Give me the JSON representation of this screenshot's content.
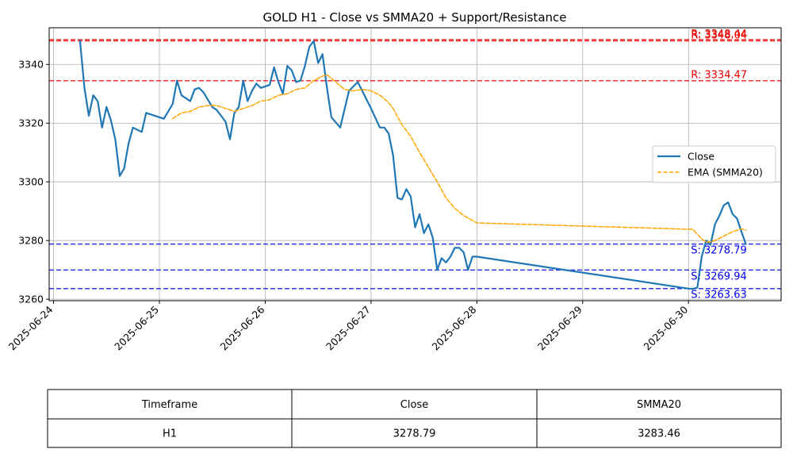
{
  "chart_data": {
    "type": "line",
    "title": "GOLD H1 - Close vs SMMA20 + Support/Resistance",
    "xlabel": "",
    "ylabel": "",
    "x_tick_labels": [
      "2025-06-24",
      "2025-06-25",
      "2025-06-26",
      "2025-06-27",
      "2025-06-28",
      "2025-06-29",
      "2025-06-30"
    ],
    "xlim": [
      "2025-06-23T23:00",
      "2025-06-30T21:00"
    ],
    "ylim": [
      3259.5,
      3352.5
    ],
    "y_ticks": [
      3260,
      3280,
      3300,
      3320,
      3340
    ],
    "grid": true,
    "legend_position": "center-right",
    "series": [
      {
        "name": "Close",
        "style": "solid",
        "color": "#1f77b4",
        "points": [
          [
            "2025-06-24T06:00",
            3348.0
          ],
          [
            "2025-06-24T07:00",
            3332.0
          ],
          [
            "2025-06-24T08:00",
            3322.5
          ],
          [
            "2025-06-24T09:00",
            3329.5
          ],
          [
            "2025-06-24T10:00",
            3327.5
          ],
          [
            "2025-06-24T11:00",
            3318.5
          ],
          [
            "2025-06-24T12:00",
            3325.5
          ],
          [
            "2025-06-24T13:00",
            3321.0
          ],
          [
            "2025-06-24T14:00",
            3314.5
          ],
          [
            "2025-06-24T15:00",
            3302.0
          ],
          [
            "2025-06-24T16:00",
            3304.5
          ],
          [
            "2025-06-24T17:00",
            3313.0
          ],
          [
            "2025-06-24T18:00",
            3318.5
          ],
          [
            "2025-06-24T20:00",
            3317.0
          ],
          [
            "2025-06-24T21:00",
            3323.5
          ],
          [
            "2025-06-25T01:00",
            3321.5
          ],
          [
            "2025-06-25T03:00",
            3326.5
          ],
          [
            "2025-06-25T04:00",
            3334.5
          ],
          [
            "2025-06-25T05:00",
            3329.5
          ],
          [
            "2025-06-25T07:00",
            3327.5
          ],
          [
            "2025-06-25T08:00",
            3331.5
          ],
          [
            "2025-06-25T09:00",
            3332.0
          ],
          [
            "2025-06-25T10:00",
            3330.5
          ],
          [
            "2025-06-25T12:00",
            3325.5
          ],
          [
            "2025-06-25T13:00",
            3324.5
          ],
          [
            "2025-06-25T15:00",
            3320.5
          ],
          [
            "2025-06-25T16:00",
            3314.5
          ],
          [
            "2025-06-25T17:00",
            3323.5
          ],
          [
            "2025-06-25T18:00",
            3325.5
          ],
          [
            "2025-06-25T19:00",
            3334.5
          ],
          [
            "2025-06-25T20:00",
            3327.5
          ],
          [
            "2025-06-25T21:00",
            3331.0
          ],
          [
            "2025-06-25T22:00",
            3333.5
          ],
          [
            "2025-06-25T23:00",
            3332.0
          ],
          [
            "2025-06-26T01:00",
            3333.0
          ],
          [
            "2025-06-26T02:00",
            3339.0
          ],
          [
            "2025-06-26T03:00",
            3334.0
          ],
          [
            "2025-06-26T04:00",
            3330.0
          ],
          [
            "2025-06-26T05:00",
            3339.5
          ],
          [
            "2025-06-26T06:00",
            3338.0
          ],
          [
            "2025-06-26T07:00",
            3334.0
          ],
          [
            "2025-06-26T08:00",
            3334.5
          ],
          [
            "2025-06-26T09:00",
            3339.5
          ],
          [
            "2025-06-26T10:00",
            3346.0
          ],
          [
            "2025-06-26T11:00",
            3348.0
          ],
          [
            "2025-06-26T12:00",
            3340.5
          ],
          [
            "2025-06-26T13:00",
            3343.5
          ],
          [
            "2025-06-26T14:00",
            3332.0
          ],
          [
            "2025-06-26T15:00",
            3322.0
          ],
          [
            "2025-06-26T17:00",
            3318.5
          ],
          [
            "2025-06-26T19:00",
            3331.0
          ],
          [
            "2025-06-26T21:00",
            3334.0
          ],
          [
            "2025-06-27T00:00",
            3325.0
          ],
          [
            "2025-06-27T02:00",
            3318.5
          ],
          [
            "2025-06-27T03:00",
            3318.5
          ],
          [
            "2025-06-27T04:00",
            3316.5
          ],
          [
            "2025-06-27T05:00",
            3309.0
          ],
          [
            "2025-06-27T06:00",
            3294.5
          ],
          [
            "2025-06-27T07:00",
            3294.0
          ],
          [
            "2025-06-27T08:00",
            3297.5
          ],
          [
            "2025-06-27T09:00",
            3295.0
          ],
          [
            "2025-06-27T10:00",
            3284.5
          ],
          [
            "2025-06-27T11:00",
            3289.0
          ],
          [
            "2025-06-27T12:00",
            3282.5
          ],
          [
            "2025-06-27T13:00",
            3285.5
          ],
          [
            "2025-06-27T14:00",
            3281.0
          ],
          [
            "2025-06-27T15:00",
            3270.0
          ],
          [
            "2025-06-27T16:00",
            3274.0
          ],
          [
            "2025-06-27T17:00",
            3272.5
          ],
          [
            "2025-06-27T18:00",
            3274.5
          ],
          [
            "2025-06-27T19:00",
            3277.5
          ],
          [
            "2025-06-27T20:00",
            3277.5
          ],
          [
            "2025-06-27T21:00",
            3276.0
          ],
          [
            "2025-06-27T22:00",
            3270.0
          ],
          [
            "2025-06-27T23:00",
            3274.5
          ],
          [
            "2025-06-28T00:00",
            3274.5
          ],
          [
            "2025-06-30T00:00",
            3263.6
          ],
          [
            "2025-06-30T01:00",
            3263.5
          ],
          [
            "2025-06-30T02:00",
            3264.0
          ],
          [
            "2025-06-30T03:00",
            3274.5
          ],
          [
            "2025-06-30T04:00",
            3280.0
          ],
          [
            "2025-06-30T05:00",
            3278.5
          ],
          [
            "2025-06-30T06:00",
            3285.5
          ],
          [
            "2025-06-30T07:00",
            3288.5
          ],
          [
            "2025-06-30T08:00",
            3292.0
          ],
          [
            "2025-06-30T09:00",
            3293.0
          ],
          [
            "2025-06-30T10:00",
            3289.0
          ],
          [
            "2025-06-30T11:00",
            3287.5
          ],
          [
            "2025-06-30T12:00",
            3283.0
          ],
          [
            "2025-06-30T13:00",
            3278.8
          ]
        ]
      },
      {
        "name": "EMA (SMMA20)",
        "style": "dashed",
        "color": "#ffa500",
        "points": [
          [
            "2025-06-25T03:00",
            3321.5
          ],
          [
            "2025-06-25T05:00",
            3323.5
          ],
          [
            "2025-06-25T07:00",
            3324.0
          ],
          [
            "2025-06-25T09:00",
            3325.5
          ],
          [
            "2025-06-25T11:00",
            3326.0
          ],
          [
            "2025-06-25T13:00",
            3326.0
          ],
          [
            "2025-06-25T15:00",
            3325.0
          ],
          [
            "2025-06-25T17:00",
            3324.0
          ],
          [
            "2025-06-25T19:00",
            3325.0
          ],
          [
            "2025-06-25T21:00",
            3326.0
          ],
          [
            "2025-06-25T23:00",
            3327.5
          ],
          [
            "2025-06-26T01:00",
            3328.0
          ],
          [
            "2025-06-26T03:00",
            3329.5
          ],
          [
            "2025-06-26T05:00",
            3330.0
          ],
          [
            "2025-06-26T07:00",
            3331.5
          ],
          [
            "2025-06-26T09:00",
            3332.0
          ],
          [
            "2025-06-26T11:00",
            3334.5
          ],
          [
            "2025-06-26T13:00",
            3336.0
          ],
          [
            "2025-06-26T14:00",
            3336.5
          ],
          [
            "2025-06-26T16:00",
            3334.0
          ],
          [
            "2025-06-26T18:00",
            3331.5
          ],
          [
            "2025-06-26T20:00",
            3331.0
          ],
          [
            "2025-06-26T22:00",
            3331.5
          ],
          [
            "2025-06-27T00:00",
            3331.0
          ],
          [
            "2025-06-27T02:00",
            3329.5
          ],
          [
            "2025-06-27T04:00",
            3327.0
          ],
          [
            "2025-06-27T05:00",
            3325.0
          ],
          [
            "2025-06-27T07:00",
            3319.5
          ],
          [
            "2025-06-27T09:00",
            3315.5
          ],
          [
            "2025-06-27T11:00",
            3310.0
          ],
          [
            "2025-06-27T13:00",
            3305.0
          ],
          [
            "2025-06-27T15:00",
            3300.0
          ],
          [
            "2025-06-27T17:00",
            3294.5
          ],
          [
            "2025-06-27T19:00",
            3291.0
          ],
          [
            "2025-06-27T21:00",
            3288.5
          ],
          [
            "2025-06-28T00:00",
            3286.0
          ],
          [
            "2025-06-30T01:00",
            3283.8
          ],
          [
            "2025-06-30T03:00",
            3280.5
          ],
          [
            "2025-06-30T04:00",
            3279.5
          ],
          [
            "2025-06-30T05:00",
            3279.5
          ],
          [
            "2025-06-30T06:00",
            3280.0
          ],
          [
            "2025-06-30T08:00",
            3281.5
          ],
          [
            "2025-06-30T10:00",
            3283.0
          ],
          [
            "2025-06-30T12:00",
            3284.0
          ],
          [
            "2025-06-30T13:00",
            3283.5
          ]
        ]
      }
    ],
    "resistance_levels": [
      {
        "value": 3348.04,
        "label": "R: 3348.04"
      },
      {
        "value": 3348.44,
        "label": "R: 3348.44"
      },
      {
        "value": 3334.47,
        "label": "R: 3334.47"
      }
    ],
    "support_levels": [
      {
        "value": 3278.79,
        "label": "S: 3278.79"
      },
      {
        "value": 3269.94,
        "label": "S: 3269.94"
      },
      {
        "value": 3263.63,
        "label": "S: 3263.63"
      }
    ],
    "colors": {
      "close": "#1f77b4",
      "smma": "#ffa500",
      "resistance": "#ee0000",
      "support": "#0000ee",
      "grid": "#b0b0b0"
    }
  },
  "table": {
    "headers": [
      "Timeframe",
      "Close",
      "SMMA20"
    ],
    "rows": [
      [
        "H1",
        "3278.79",
        "3283.46"
      ]
    ]
  }
}
